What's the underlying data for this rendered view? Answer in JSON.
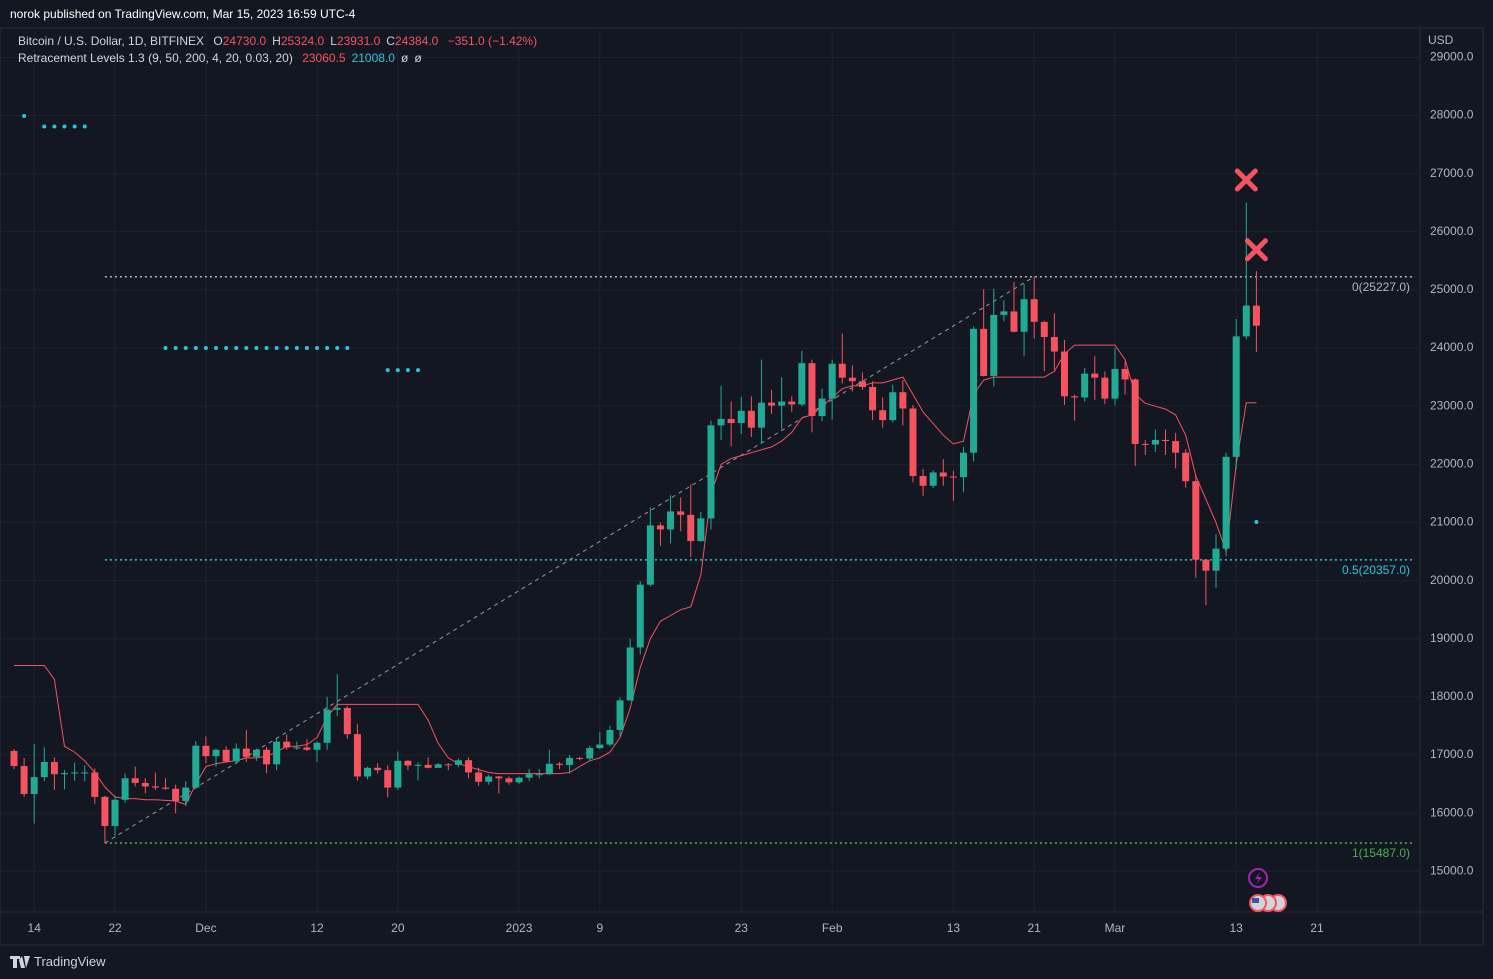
{
  "header": {
    "published": "norok published on TradingView.com, Mar 15, 2023 16:59 UTC-4",
    "legend": {
      "symbol": "Bitcoin / U.S. Dollar, 1D, BITFINEX",
      "fields": [
        {
          "key": "O",
          "value": "24730.0"
        },
        {
          "key": "H",
          "value": "25324.0"
        },
        {
          "key": "L",
          "value": "23931.0"
        },
        {
          "key": "C",
          "value": "24384.0"
        }
      ],
      "change": "−351.0 (−1.42%)"
    },
    "indicator": {
      "name": "Retracement Levels 1.3 (9, 50, 200, 4, 20, 0.03, 20)",
      "values": [
        {
          "text": "23060.5",
          "color": "#f7525f"
        },
        {
          "text": "21008.0",
          "color": "#26c6da"
        },
        {
          "text": "ø",
          "color": "#d1d4dc"
        },
        {
          "text": "ø",
          "color": "#d1d4dc"
        }
      ]
    },
    "branding": "TradingView"
  },
  "chart_data": {
    "type": "candlestick",
    "currency": "USD",
    "up_color": "#22ab94",
    "down_color": "#f7525f",
    "categories": [
      null,
      null,
      "14",
      null,
      null,
      null,
      null,
      null,
      null,
      null,
      "22",
      null,
      null,
      null,
      null,
      null,
      null,
      null,
      null,
      "Dec",
      null,
      null,
      null,
      null,
      null,
      null,
      null,
      null,
      null,
      null,
      "12",
      null,
      null,
      null,
      null,
      null,
      null,
      null,
      "20",
      null,
      null,
      null,
      null,
      null,
      null,
      null,
      null,
      null,
      null,
      null,
      "2023",
      null,
      null,
      null,
      null,
      null,
      null,
      null,
      "9",
      null,
      null,
      null,
      null,
      null,
      null,
      null,
      null,
      null,
      null,
      null,
      null,
      null,
      "23",
      null,
      null,
      null,
      null,
      null,
      null,
      null,
      null,
      "Feb",
      null,
      null,
      null,
      null,
      null,
      null,
      null,
      null,
      null,
      null,
      null,
      "13",
      null,
      null,
      null,
      null,
      null,
      null,
      null,
      "21",
      null,
      null,
      null,
      null,
      null,
      null,
      null,
      "Mar",
      null,
      null,
      null,
      null,
      null,
      null,
      null,
      null,
      null,
      null,
      null,
      "13",
      null,
      null,
      null,
      null,
      null,
      null,
      null,
      "21"
    ],
    "open": [
      17070,
      16810,
      16330,
      16620,
      16880,
      16670,
      16690,
      16700,
      16700,
      16280,
      15780,
      16230,
      16600,
      16520,
      16460,
      16440,
      16420,
      16210,
      16440,
      17160,
      16980,
      17090,
      16890,
      17110,
      16970,
      17090,
      16840,
      17230,
      17130,
      17130,
      17090,
      17210,
      17780,
      17810,
      17360,
      16630,
      16780,
      16740,
      16440,
      16900,
      16820,
      16830,
      16780,
      16840,
      16830,
      16910,
      16700,
      16540,
      16630,
      16600,
      16530,
      16610,
      16670,
      16670,
      16850,
      16830,
      16950,
      16940,
      17120,
      17180,
      17430,
      17940,
      18850,
      19930,
      20950,
      20880,
      21190,
      21130,
      20680,
      21070,
      22670,
      22780,
      22710,
      22920,
      22630,
      23060,
      23010,
      23080,
      23030,
      23740,
      22830,
      23130,
      23730,
      23490,
      23430,
      23330,
      22930,
      22760,
      23240,
      22960,
      21800,
      21630,
      21860,
      21790,
      21780,
      22200,
      24330,
      23520,
      24570,
      24630,
      24280,
      24840,
      24450,
      24190,
      23940,
      23170,
      23150,
      23560,
      23490,
      23130,
      23640,
      23460,
      22350,
      22340,
      22420,
      22400,
      22200,
      21710,
      20360,
      20170,
      20550,
      22130,
      24200,
      24730,
      null,
      null,
      null,
      null,
      null,
      null
    ],
    "high": [
      17100,
      16950,
      17190,
      17130,
      16960,
      16740,
      16870,
      16820,
      16770,
      16300,
      16300,
      16680,
      16800,
      16600,
      16700,
      16600,
      16490,
      16550,
      17240,
      17320,
      17110,
      17150,
      17200,
      17430,
      17110,
      17140,
      17300,
      17350,
      17230,
      17270,
      17240,
      18000,
      18390,
      17840,
      17530,
      16800,
      16860,
      16820,
      17060,
      16920,
      16870,
      16960,
      16860,
      16860,
      16940,
      16960,
      16780,
      16660,
      16640,
      16630,
      16630,
      16760,
      16760,
      17090,
      16880,
      17000,
      16970,
      17160,
      17400,
      17500,
      17990,
      19000,
      19990,
      21260,
      21000,
      21470,
      21430,
      21650,
      21180,
      22750,
      23350,
      23080,
      23160,
      23170,
      23800,
      23280,
      23500,
      23170,
      23950,
      23800,
      23300,
      23800,
      24250,
      23700,
      23580,
      23430,
      23150,
      23370,
      23450,
      23020,
      21920,
      21900,
      22090,
      21890,
      22300,
      24370,
      25010,
      25020,
      24820,
      25140,
      25100,
      25227,
      24470,
      24600,
      24140,
      23200,
      23660,
      23860,
      23600,
      24000,
      23770,
      23480,
      22420,
      22600,
      22600,
      22540,
      22260,
      21820,
      20370,
      20800,
      22200,
      24500,
      26500,
      25324,
      null,
      null,
      null,
      null,
      null,
      null
    ],
    "low": [
      16760,
      16280,
      15820,
      16550,
      16400,
      16410,
      16560,
      16550,
      16160,
      15487,
      15600,
      16180,
      16460,
      16340,
      16400,
      16400,
      16000,
      16120,
      16420,
      16860,
      16800,
      16870,
      16880,
      16880,
      16900,
      16690,
      16740,
      17090,
      17090,
      17070,
      16880,
      17090,
      17670,
      17280,
      16560,
      16580,
      16680,
      16270,
      16400,
      16740,
      16560,
      16770,
      16780,
      16740,
      16790,
      16600,
      16470,
      16490,
      16340,
      16490,
      16500,
      16550,
      16600,
      16660,
      16760,
      16680,
      16910,
      16910,
      17100,
      17150,
      17320,
      17930,
      18730,
      19900,
      20600,
      20640,
      20850,
      20410,
      20670,
      20880,
      22420,
      22310,
      22520,
      22470,
      22350,
      22870,
      22600,
      22900,
      23000,
      22550,
      22740,
      22770,
      23390,
      23250,
      23280,
      22760,
      22630,
      22720,
      22670,
      21690,
      21460,
      21590,
      21630,
      21370,
      21520,
      22050,
      23510,
      23340,
      24460,
      24270,
      23860,
      24160,
      23600,
      23630,
      23020,
      22750,
      23080,
      23110,
      23040,
      23020,
      23200,
      21970,
      22160,
      22210,
      22160,
      21930,
      21600,
      20050,
      19580,
      19880,
      20420,
      21920,
      24150,
      23931,
      null,
      null,
      null,
      null,
      null,
      null
    ],
    "close": [
      16810,
      16330,
      16620,
      16880,
      16670,
      16690,
      16700,
      16700,
      16280,
      15780,
      16230,
      16600,
      16520,
      16460,
      16440,
      16420,
      16210,
      16440,
      17160,
      16980,
      17090,
      16890,
      17110,
      16970,
      17090,
      16840,
      17230,
      17130,
      17130,
      17090,
      17210,
      17780,
      17810,
      17360,
      16630,
      16780,
      16740,
      16440,
      16900,
      16820,
      16830,
      16780,
      16840,
      16830,
      16910,
      16700,
      16540,
      16630,
      16600,
      16530,
      16610,
      16670,
      16670,
      16850,
      16830,
      16950,
      16940,
      17120,
      17180,
      17430,
      17940,
      18850,
      19930,
      20950,
      20880,
      21190,
      21130,
      20680,
      21070,
      22670,
      22780,
      22710,
      22920,
      22630,
      23060,
      23010,
      23080,
      23030,
      23740,
      22830,
      23130,
      23730,
      23490,
      23430,
      23330,
      22930,
      22760,
      23240,
      22960,
      21800,
      21630,
      21860,
      21790,
      21780,
      22200,
      24330,
      23520,
      24570,
      24630,
      24280,
      24840,
      24450,
      24190,
      23940,
      23170,
      23150,
      23560,
      23490,
      23130,
      23640,
      23460,
      22350,
      22340,
      22420,
      22400,
      22200,
      21710,
      20360,
      20170,
      20550,
      22130,
      24200,
      24730,
      24384,
      null,
      null,
      null,
      null,
      null,
      null
    ],
    "trail": {
      "color": "#f7525f",
      "values": [
        18540,
        18540,
        18540,
        18540,
        18300,
        17150,
        17050,
        16900,
        16700,
        16450,
        16280,
        16250,
        16250,
        16230,
        16230,
        16220,
        16210,
        16150,
        16500,
        16800,
        16850,
        16880,
        16900,
        16950,
        16950,
        16980,
        17050,
        17150,
        17150,
        17180,
        17300,
        17650,
        17870,
        17870,
        17870,
        17870,
        17870,
        17870,
        17870,
        17870,
        17870,
        17600,
        17200,
        16950,
        16850,
        16800,
        16750,
        16700,
        16680,
        16680,
        16680,
        16680,
        16680,
        16680,
        16680,
        16700,
        16800,
        16900,
        16950,
        17050,
        17300,
        17800,
        18500,
        19000,
        19300,
        19400,
        19500,
        19550,
        20100,
        21500,
        22000,
        22100,
        22150,
        22200,
        22250,
        22300,
        22400,
        22550,
        22800,
        22850,
        23000,
        23150,
        23300,
        23350,
        23350,
        23400,
        23400,
        23450,
        23500,
        23200,
        22900,
        22700,
        22500,
        22350,
        22400,
        23200,
        23450,
        23500,
        23500,
        23500,
        23500,
        23500,
        23500,
        23600,
        23900,
        24050,
        24050,
        24050,
        24050,
        24050,
        23800,
        23200,
        23050,
        23000,
        22950,
        22850,
        22500,
        21800,
        21400,
        21000,
        20500,
        22000,
        23060,
        23060,
        null,
        null,
        null,
        null,
        null,
        null
      ]
    },
    "dots": {
      "color": "#26c6da",
      "values": [
        null,
        27990,
        null,
        27810,
        27810,
        27810,
        27810,
        27810,
        null,
        null,
        null,
        null,
        null,
        null,
        null,
        24000,
        24000,
        24000,
        24000,
        24000,
        24000,
        24000,
        24000,
        24000,
        24000,
        24000,
        24000,
        24000,
        24000,
        24000,
        24000,
        24000,
        24000,
        24000,
        null,
        null,
        null,
        23620,
        23620,
        23620,
        23620,
        null,
        null,
        null,
        null,
        null,
        null,
        null,
        null,
        null,
        null,
        null,
        null,
        null,
        null,
        null,
        null,
        null,
        null,
        null,
        null,
        null,
        null,
        null,
        null,
        null,
        null,
        null,
        null,
        null,
        null,
        null,
        null,
        null,
        null,
        null,
        null,
        null,
        null,
        null,
        null,
        null,
        null,
        null,
        null,
        null,
        null,
        null,
        null,
        null,
        null,
        null,
        null,
        null,
        null,
        null,
        null,
        null,
        null,
        null,
        null,
        null,
        null,
        null,
        null,
        null,
        null,
        null,
        null,
        null,
        null,
        null,
        null,
        null,
        null,
        null,
        null,
        null,
        null,
        null,
        null,
        null,
        null,
        21008,
        null,
        null,
        null,
        null,
        null,
        null
      ]
    },
    "signals": {
      "color": "#f7525f",
      "values": [
        null,
        null,
        null,
        null,
        null,
        null,
        null,
        null,
        null,
        null,
        null,
        null,
        null,
        null,
        null,
        null,
        null,
        null,
        null,
        null,
        null,
        null,
        null,
        null,
        null,
        null,
        null,
        null,
        null,
        null,
        null,
        null,
        null,
        null,
        null,
        null,
        null,
        null,
        null,
        null,
        null,
        null,
        null,
        null,
        null,
        null,
        null,
        null,
        null,
        null,
        null,
        null,
        null,
        null,
        null,
        null,
        null,
        null,
        null,
        null,
        null,
        null,
        null,
        null,
        null,
        null,
        null,
        null,
        null,
        null,
        null,
        null,
        null,
        null,
        null,
        null,
        null,
        null,
        null,
        null,
        null,
        null,
        null,
        null,
        null,
        null,
        null,
        null,
        null,
        null,
        null,
        null,
        null,
        null,
        null,
        null,
        null,
        null,
        null,
        null,
        null,
        null,
        null,
        null,
        null,
        null,
        null,
        null,
        null,
        null,
        null,
        null,
        null,
        null,
        null,
        null,
        null,
        null,
        null,
        null,
        null,
        null,
        26890,
        25690,
        null,
        null,
        null,
        null,
        null,
        null
      ]
    },
    "levels": [
      {
        "value": 25227,
        "label": "0(25227.0)",
        "color": "#b2b5be"
      },
      {
        "value": 20357,
        "label": "0.5(20357.0)",
        "color": "#26c6da"
      },
      {
        "value": 15487,
        "label": "1(15487.0)",
        "color": "#4caf50"
      }
    ],
    "ylim": [
      14300,
      29470
    ],
    "yticks": [
      {
        "value": 15000,
        "label": "15000.0"
      },
      {
        "value": 16000,
        "label": "16000.0"
      },
      {
        "value": 17000,
        "label": "17000.0"
      },
      {
        "value": 18000,
        "label": "18000.0"
      },
      {
        "value": 19000,
        "label": "19000.0"
      },
      {
        "value": 20000,
        "label": "20000.0"
      },
      {
        "value": 21000,
        "label": "21000.0"
      },
      {
        "value": 22000,
        "label": "22000.0"
      },
      {
        "value": 23000,
        "label": "23000.0"
      },
      {
        "value": 24000,
        "label": "24000.0"
      },
      {
        "value": 25000,
        "label": "25000.0"
      },
      {
        "value": 26000,
        "label": "26000.0"
      },
      {
        "value": 27000,
        "label": "27000.0"
      },
      {
        "value": 28000,
        "label": "28000.0"
      },
      {
        "value": 29000,
        "label": "29000.0"
      }
    ],
    "grid": true
  }
}
